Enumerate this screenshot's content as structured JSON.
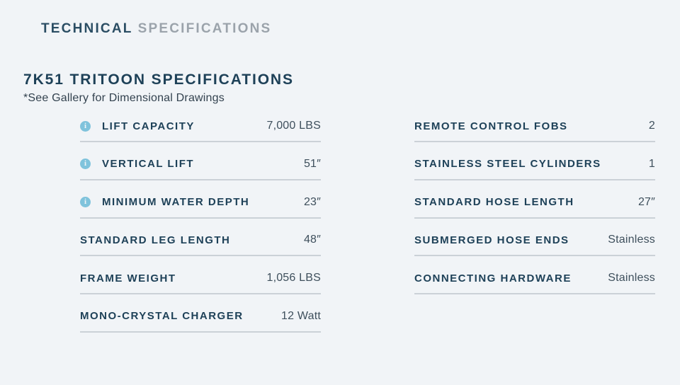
{
  "header": {
    "primary": "TECHNICAL",
    "secondary": "SPECIFICATIONS"
  },
  "section": {
    "title": "7K51 TRITOON SPECIFICATIONS",
    "subtitle": "*See Gallery for Dimensional Drawings"
  },
  "icons": {
    "info_glyph": "i"
  },
  "colors": {
    "background": "#f1f4f7",
    "label_navy": "#1e4158",
    "header_primary": "#2a4d63",
    "header_secondary": "#9ba3ab",
    "value_text": "#3e4f5c",
    "divider": "#cbd1d7",
    "info_icon": "#7fc3dc"
  },
  "columns": {
    "left": [
      {
        "label": "LIFT CAPACITY",
        "value": "7,000 LBS",
        "info": true
      },
      {
        "label": "VERTICAL LIFT",
        "value": "51″",
        "info": true
      },
      {
        "label": "MINIMUM WATER DEPTH",
        "value": "23″",
        "info": true
      },
      {
        "label": "STANDARD LEG LENGTH",
        "value": "48″",
        "info": false
      },
      {
        "label": "FRAME WEIGHT",
        "value": "1,056 LBS",
        "info": false
      },
      {
        "label": "MONO-CRYSTAL CHARGER",
        "value": "12 Watt",
        "info": false
      }
    ],
    "right": [
      {
        "label": "REMOTE CONTROL FOBS",
        "value": "2",
        "info": false
      },
      {
        "label": "STAINLESS STEEL CYLINDERS",
        "value": "1",
        "info": false
      },
      {
        "label": "STANDARD HOSE LENGTH",
        "value": "27″",
        "info": false
      },
      {
        "label": "SUBMERGED HOSE ENDS",
        "value": "Stainless",
        "info": false
      },
      {
        "label": "CONNECTING HARDWARE",
        "value": "Stainless",
        "info": false
      }
    ]
  }
}
